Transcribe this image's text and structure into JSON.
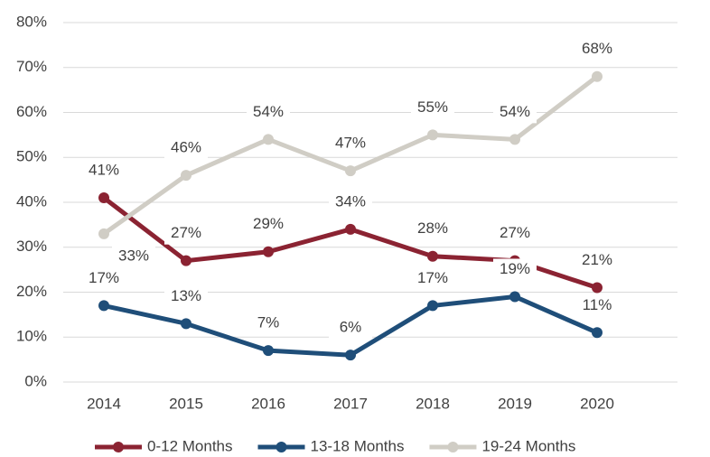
{
  "chart_data": {
    "type": "line",
    "categories": [
      "2014",
      "2015",
      "2016",
      "2017",
      "2018",
      "2019",
      "2020"
    ],
    "series": [
      {
        "name": "0-12 Months",
        "color": "#8b2332",
        "values": [
          41,
          27,
          29,
          34,
          28,
          27,
          21
        ],
        "value_labels": [
          "41%",
          "27%",
          "29%",
          "34%",
          "28%",
          "27%",
          "21%"
        ]
      },
      {
        "name": "13-18 Months",
        "color": "#1f4e79",
        "values": [
          17,
          13,
          7,
          6,
          17,
          19,
          11
        ],
        "value_labels": [
          "17%",
          "13%",
          "7%",
          "6%",
          "17%",
          "19%",
          "11%"
        ]
      },
      {
        "name": "19-24 Months",
        "color": "#d0cdc5",
        "values": [
          33,
          46,
          54,
          47,
          55,
          54,
          68
        ],
        "value_labels": [
          "33%",
          "46%",
          "54%",
          "47%",
          "55%",
          "54%",
          "68%"
        ]
      }
    ],
    "ylim": [
      0,
      80
    ],
    "yticks": [
      {
        "value": 0,
        "label": "0%"
      },
      {
        "value": 10,
        "label": "10%"
      },
      {
        "value": 20,
        "label": "20%"
      },
      {
        "value": 30,
        "label": "30%"
      },
      {
        "value": 40,
        "label": "40%"
      },
      {
        "value": 50,
        "label": "50%"
      },
      {
        "value": 60,
        "label": "60%"
      },
      {
        "value": 70,
        "label": "70%"
      },
      {
        "value": 80,
        "label": "80%"
      }
    ],
    "grid": true,
    "legend": "bottom"
  }
}
